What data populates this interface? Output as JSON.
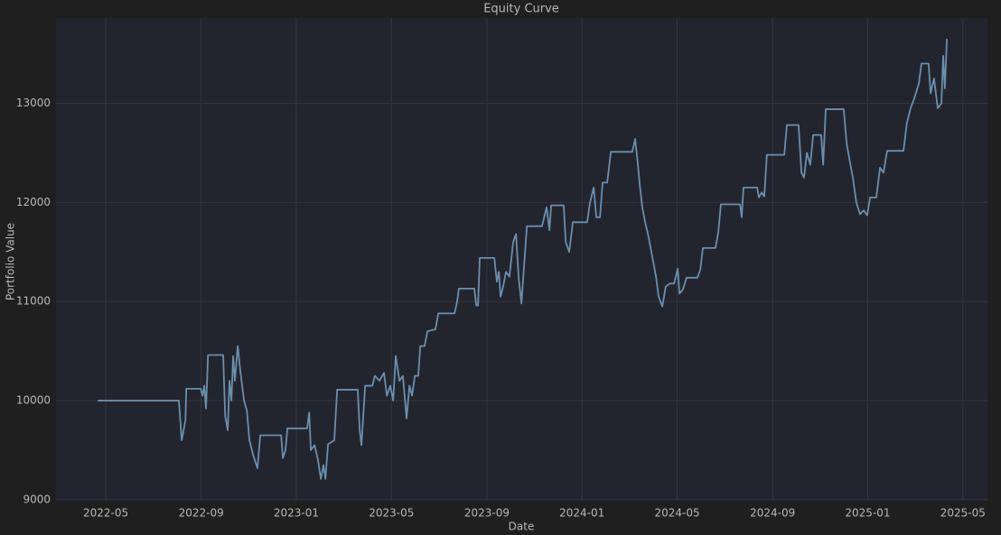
{
  "chart_data": {
    "type": "line",
    "title": "Equity Curve",
    "x_label": "Date",
    "y_label": "Portfolio Value",
    "color": "#6a8fae",
    "grid": true,
    "xlim": [
      2022.159,
      2025.419
    ],
    "ylim": [
      8990,
      13860
    ],
    "xticks": [
      {
        "value": 2022.333,
        "label": "2022-05"
      },
      {
        "value": 2022.667,
        "label": "2022-09"
      },
      {
        "value": 2023.0,
        "label": "2023-01"
      },
      {
        "value": 2023.333,
        "label": "2023-05"
      },
      {
        "value": 2023.667,
        "label": "2023-09"
      },
      {
        "value": 2024.0,
        "label": "2024-01"
      },
      {
        "value": 2024.333,
        "label": "2024-05"
      },
      {
        "value": 2024.667,
        "label": "2024-09"
      },
      {
        "value": 2025.0,
        "label": "2025-01"
      },
      {
        "value": 2025.333,
        "label": "2025-05"
      }
    ],
    "yticks": [
      9000,
      10000,
      11000,
      12000,
      13000
    ],
    "x": [
      2022.305,
      2022.589,
      2022.599,
      2022.612,
      2022.615,
      2022.665,
      2022.672,
      2022.678,
      2022.684,
      2022.691,
      2022.744,
      2022.751,
      2022.76,
      2022.766,
      2022.773,
      2022.779,
      2022.785,
      2022.795,
      2022.804,
      2022.817,
      2022.827,
      2022.836,
      2022.849,
      2022.864,
      2022.874,
      2022.947,
      2022.953,
      2022.962,
      2022.969,
      2023.038,
      2023.045,
      2023.051,
      2023.064,
      2023.076,
      2023.086,
      2023.095,
      2023.102,
      2023.111,
      2023.133,
      2023.143,
      2023.215,
      2023.222,
      2023.228,
      2023.241,
      2023.266,
      2023.275,
      2023.291,
      2023.307,
      2023.317,
      2023.329,
      2023.339,
      2023.348,
      2023.361,
      2023.373,
      2023.386,
      2023.396,
      2023.405,
      2023.415,
      2023.427,
      2023.434,
      2023.449,
      2023.459,
      2023.487,
      2023.497,
      2023.554,
      2023.563,
      2023.569,
      2023.623,
      2023.63,
      2023.636,
      2023.642,
      2023.693,
      2023.702,
      2023.709,
      2023.715,
      2023.724,
      2023.734,
      2023.746,
      2023.759,
      2023.769,
      2023.778,
      2023.788,
      2023.797,
      2023.807,
      2023.86,
      2023.876,
      2023.886,
      2023.892,
      2023.936,
      2023.943,
      2023.955,
      2023.968,
      2024.018,
      2024.028,
      2024.041,
      2024.05,
      2024.063,
      2024.072,
      2024.088,
      2024.101,
      2024.176,
      2024.186,
      2024.195,
      2024.202,
      2024.211,
      2024.221,
      2024.233,
      2024.246,
      2024.259,
      2024.268,
      2024.281,
      2024.293,
      2024.306,
      2024.322,
      2024.335,
      2024.341,
      2024.353,
      2024.366,
      2024.404,
      2024.414,
      2024.423,
      2024.467,
      2024.477,
      2024.486,
      2024.553,
      2024.559,
      2024.565,
      2024.613,
      2024.619,
      2024.629,
      2024.638,
      2024.647,
      2024.708,
      2024.717,
      2024.758,
      2024.768,
      2024.777,
      2024.787,
      2024.799,
      2024.809,
      2024.837,
      2024.844,
      2024.853,
      2024.916,
      2024.926,
      2024.935,
      2024.948,
      2024.96,
      2024.973,
      2024.986,
      2024.998,
      2025.008,
      2025.03,
      2025.043,
      2025.055,
      2025.068,
      2025.125,
      2025.137,
      2025.15,
      2025.163,
      2025.179,
      2025.188,
      2025.213,
      2025.22,
      2025.232,
      2025.245,
      2025.258,
      2025.264,
      2025.27,
      2025.277
    ],
    "values": [
      10000,
      10000,
      9600,
      9800,
      10120,
      10120,
      10050,
      10150,
      9920,
      10460,
      10460,
      9850,
      9700,
      10200,
      10000,
      10450,
      10200,
      10550,
      10300,
      10000,
      9900,
      9600,
      9450,
      9320,
      9650,
      9650,
      9420,
      9500,
      9720,
      9720,
      9880,
      9500,
      9550,
      9400,
      9210,
      9350,
      9210,
      9560,
      9600,
      10110,
      10110,
      9700,
      9550,
      10150,
      10150,
      10250,
      10200,
      10280,
      10050,
      10150,
      10000,
      10450,
      10200,
      10250,
      9820,
      10150,
      10050,
      10250,
      10250,
      10550,
      10550,
      10700,
      10720,
      10880,
      10880,
      11000,
      11130,
      11130,
      10960,
      10960,
      11440,
      11440,
      11200,
      11300,
      11050,
      11150,
      11300,
      11250,
      11600,
      11680,
      11250,
      10980,
      11350,
      11760,
      11760,
      11950,
      11720,
      11970,
      11970,
      11600,
      11500,
      11800,
      11800,
      12000,
      12150,
      11850,
      11850,
      12200,
      12200,
      12510,
      12510,
      12640,
      12400,
      12180,
      11950,
      11800,
      11650,
      11450,
      11250,
      11050,
      10950,
      11150,
      11180,
      11180,
      11330,
      11080,
      11120,
      11240,
      11240,
      11320,
      11540,
      11540,
      11700,
      11980,
      11980,
      11850,
      12150,
      12150,
      12050,
      12100,
      12060,
      12480,
      12480,
      12780,
      12780,
      12300,
      12250,
      12500,
      12380,
      12680,
      12680,
      12380,
      12940,
      12940,
      12600,
      12450,
      12250,
      12000,
      11880,
      11920,
      11870,
      12050,
      12050,
      12350,
      12300,
      12520,
      12520,
      12800,
      12950,
      13050,
      13200,
      13400,
      13400,
      13100,
      13250,
      12950,
      13000,
      13480,
      13150,
      13650
    ]
  }
}
